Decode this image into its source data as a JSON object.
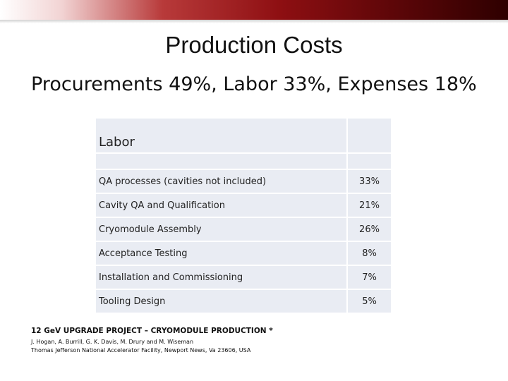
{
  "slide": {
    "title": "Production Costs",
    "subtitle": "Procurements 49%, Labor 33%, Expenses 18%"
  },
  "table": {
    "header": "Labor",
    "rows": [
      {
        "label": "QA processes (cavities not included)",
        "value": "33%"
      },
      {
        "label": "Cavity QA and Qualification",
        "value": "21%"
      },
      {
        "label": "Cryomodule Assembly",
        "value": "26%"
      },
      {
        "label": "Acceptance Testing",
        "value": "8%"
      },
      {
        "label": "Installation and Commissioning",
        "value": "7%"
      },
      {
        "label": "Tooling Design",
        "value": "5%"
      }
    ]
  },
  "footer": {
    "title": "12 GeV UPGRADE PROJECT – CRYOMODULE PRODUCTION *",
    "authors": "J. Hogan, A. Burrill, G. K. Davis, M. Drury and M. Wiseman",
    "affiliation": "Thomas Jefferson National Accelerator Facility, Newport News, Va 23606, USA"
  },
  "colors": {
    "banner_dark": "#5c0608",
    "banner_mid": "#8e0f12",
    "table_cell": "#e9ecf3"
  }
}
